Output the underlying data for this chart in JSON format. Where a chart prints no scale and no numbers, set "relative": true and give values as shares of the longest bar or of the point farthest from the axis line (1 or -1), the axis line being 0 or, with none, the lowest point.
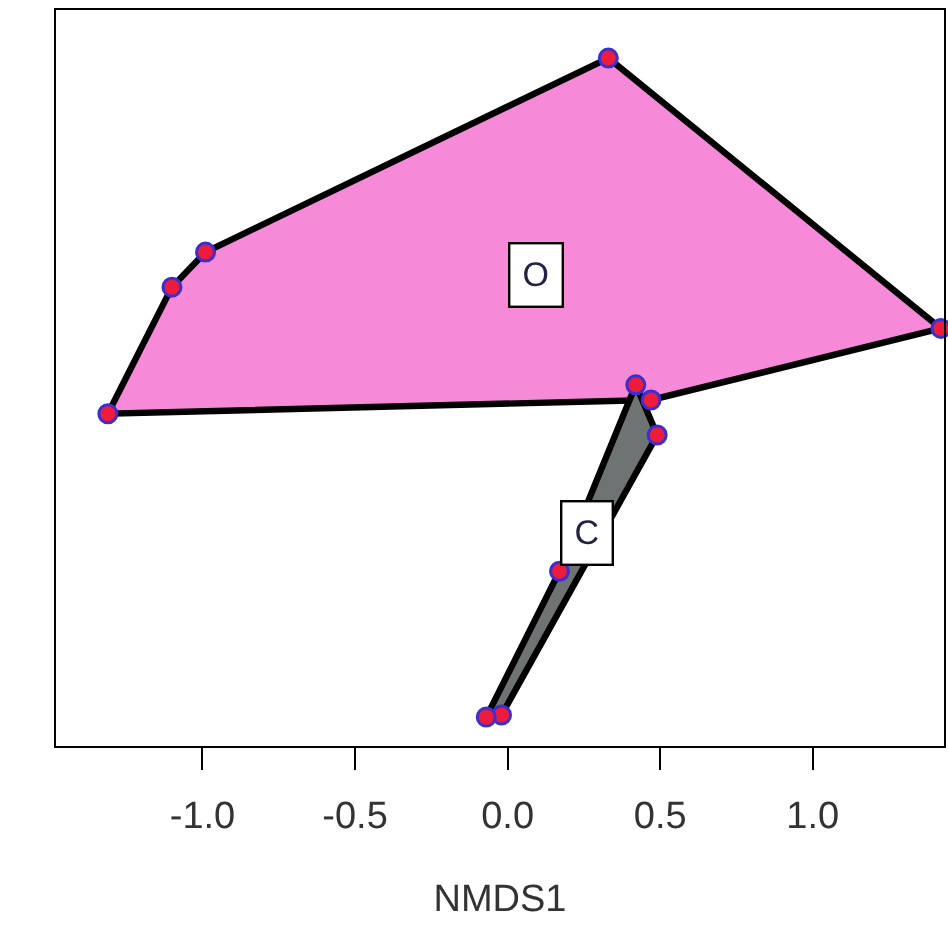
{
  "chart_data": {
    "type": "scatter",
    "relative": true,
    "xlabel": "NMDS1",
    "xlim": [
      -1.48,
      1.43
    ],
    "xticks": [
      {
        "value": -1,
        "label": "-1.0"
      },
      -0.5,
      {
        "value": 0,
        "label": "0.0"
      },
      0.5,
      {
        "value": 1,
        "label": "1.0"
      }
    ],
    "tick_labels": "x",
    "series": [
      {
        "type": "area",
        "color": "#f78ad8",
        "x": [
          0.33,
          1.42,
          0.47,
          -1.31,
          -1.1,
          -0.99
        ],
        "values": [
          1.0,
          0.607,
          0.503,
          0.483,
          0.667,
          0.718
        ]
      },
      {
        "type": "area",
        "color": "#6e7373",
        "x": [
          0.42,
          0.49,
          -0.02,
          -0.07,
          0.17
        ],
        "values": [
          0.525,
          0.452,
          0.045,
          0.042,
          0.254
        ]
      },
      {
        "marker": "circle",
        "color": "#ee1c3c",
        "x": [
          0.33,
          1.42,
          0.47,
          -1.31,
          -1.1,
          -0.99,
          0.42,
          0.49,
          0.17,
          -0.02,
          -0.07
        ],
        "values": [
          1.0,
          0.607,
          0.503,
          0.483,
          0.667,
          0.718,
          0.525,
          0.452,
          0.254,
          0.045,
          0.042
        ]
      }
    ],
    "annotations": [
      {
        "text": "O",
        "x": 0.09,
        "y": 0.684
      },
      {
        "text": "C",
        "x": 0.26,
        "y": 0.311
      }
    ]
  }
}
